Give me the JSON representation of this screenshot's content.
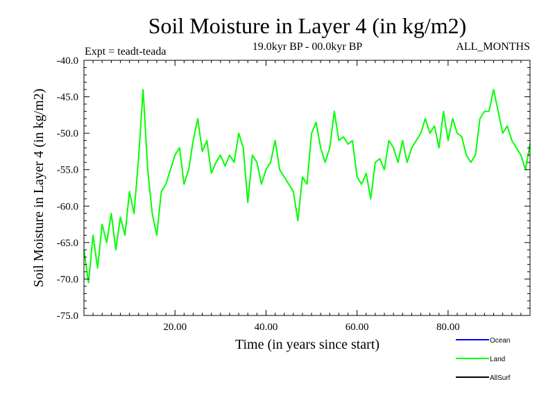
{
  "chart_data": {
    "type": "line",
    "title": "Soil Moisture in Layer 4 (in kg/m2)",
    "subtitle": "19.0kyr BP - 00.0kyr BP",
    "left_note": "Expt = teadt-teada",
    "right_note": "ALL_MONTHS",
    "xlabel": "Time (in years since start)",
    "ylabel": "Soil Moisture in Layer 4 (in kg/m2)",
    "xlim": [
      0,
      98
    ],
    "ylim": [
      -75,
      -40
    ],
    "x_ticks": [
      20,
      40,
      60,
      80
    ],
    "x_tick_labels": [
      "20.00",
      "40.00",
      "60.00",
      "80.00"
    ],
    "y_ticks": [
      -40,
      -45,
      -50,
      -55,
      -60,
      -65,
      -70,
      -75
    ],
    "y_tick_labels": [
      "-40.0",
      "-45.0",
      "-50.0",
      "-55.0",
      "-60.0",
      "-65.0",
      "-70.0",
      "-75.0"
    ],
    "legend": [
      {
        "name": "Ocean",
        "color": "#0000ff"
      },
      {
        "name": "Land",
        "color": "#00ff00"
      },
      {
        "name": "AllSurf",
        "color": "#000000"
      }
    ],
    "series": [
      {
        "name": "Land",
        "color": "#00ff00",
        "x_start": 0.0,
        "x_step": 1.0,
        "values": [
          -66.0,
          -70.5,
          -64.0,
          -68.5,
          -62.5,
          -65.0,
          -61.0,
          -66.0,
          -61.5,
          -64.0,
          -58.0,
          -61.0,
          -53.5,
          -44.0,
          -55.0,
          -61.0,
          -64.0,
          -58.0,
          -57.0,
          -55.0,
          -53.0,
          -52.0,
          -57.0,
          -55.0,
          -51.0,
          -48.0,
          -52.5,
          -51.0,
          -55.5,
          -54.0,
          -53.0,
          -54.5,
          -53.0,
          -54.0,
          -50.0,
          -52.0,
          -59.5,
          -53.0,
          -54.0,
          -57.0,
          -55.0,
          -54.0,
          -51.0,
          -55.0,
          -56.0,
          -57.0,
          -58.0,
          -62.0,
          -56.0,
          -57.0,
          -50.0,
          -48.5,
          -52.0,
          -54.0,
          -52.0,
          -47.0,
          -51.0,
          -50.5,
          -51.5,
          -51.0,
          -56.0,
          -57.0,
          -55.5,
          -59.0,
          -54.0,
          -53.5,
          -55.0,
          -51.0,
          -52.0,
          -54.0,
          -51.0,
          -54.0,
          -52.0,
          -51.0,
          -50.0,
          -48.0,
          -50.0,
          -49.0,
          -52.0,
          -47.0,
          -51.0,
          -48.0,
          -50.0,
          -50.5,
          -53.0,
          -54.0,
          -53.0,
          -48.0,
          -47.0,
          -47.0,
          -44.0,
          -47.0,
          -50.0,
          -49.0,
          -51.0,
          -52.0,
          -53.0,
          -55.0,
          -51.5
        ]
      }
    ]
  }
}
